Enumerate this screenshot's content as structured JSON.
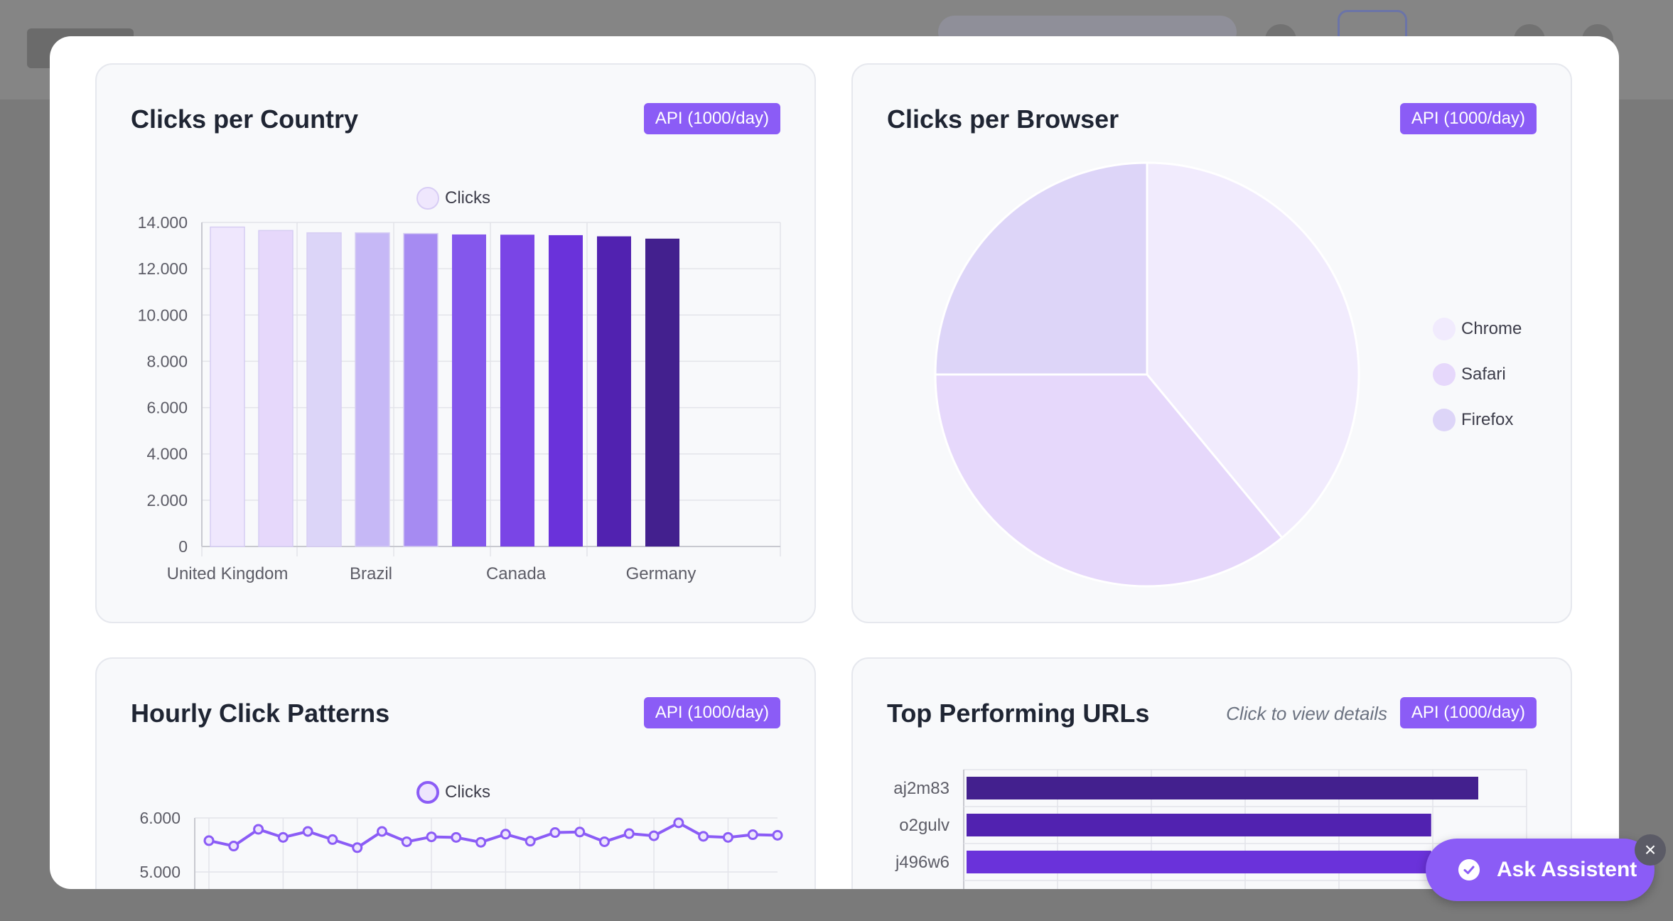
{
  "cards": {
    "country": {
      "title": "Clicks per Country",
      "badge": "API (1000/day)",
      "legend": "Clicks"
    },
    "browser": {
      "title": "Clicks per Browser",
      "badge": "API (1000/day)",
      "legend": [
        "Chrome",
        "Safari",
        "Firefox"
      ]
    },
    "hourly": {
      "title": "Hourly Click Patterns",
      "badge": "API (1000/day)",
      "legend": "Clicks"
    },
    "urls": {
      "title": "Top Performing URLs",
      "hint": "Click to view details",
      "badge": "API (1000/day)"
    }
  },
  "assistant": {
    "label": "Ask Assistent"
  },
  "colors": {
    "accent": "#8b5cf6",
    "bar_palette": [
      "#efe7fd",
      "#e6d8fb",
      "#dcd5f8",
      "#c6b8f6",
      "#a68bf2",
      "#8457ec",
      "#7a45e6",
      "#6a32da",
      "#5122b0",
      "#43208e"
    ]
  },
  "chart_data": [
    {
      "type": "bar",
      "title": "Clicks per Country",
      "legend": "Clicks",
      "categories": [
        "United Kingdom",
        "",
        "Brazil",
        "",
        "",
        "Canada",
        "",
        "",
        "Germany",
        ""
      ],
      "tick_labels": [
        "United Kingdom",
        "Brazil",
        "Canada",
        "Germany"
      ],
      "values": [
        13800,
        13650,
        13550,
        13550,
        13520,
        13480,
        13470,
        13450,
        13400,
        13300
      ],
      "ylim": [
        0,
        14000
      ],
      "yticks": [
        "0",
        "2.000",
        "4.000",
        "6.000",
        "8.000",
        "10.000",
        "12.000",
        "14.000"
      ],
      "grid": true,
      "legend_position": "top"
    },
    {
      "type": "pie",
      "title": "Clicks per Browser",
      "labels": [
        "Chrome",
        "Safari",
        "Firefox"
      ],
      "values": [
        39,
        36,
        25
      ],
      "colors": [
        "#f1ebfd",
        "#e6d8fb",
        "#ddd5f8"
      ],
      "legend_position": "right"
    },
    {
      "type": "line",
      "title": "Hourly Click Patterns",
      "legend": "Clicks",
      "x": [
        0,
        1,
        2,
        3,
        4,
        5,
        6,
        7,
        8,
        9,
        10,
        11,
        12,
        13,
        14,
        15,
        16,
        17,
        18,
        19,
        20,
        21,
        22,
        23
      ],
      "values": [
        5580,
        5480,
        5790,
        5640,
        5750,
        5600,
        5450,
        5750,
        5560,
        5650,
        5640,
        5550,
        5700,
        5570,
        5730,
        5740,
        5560,
        5710,
        5670,
        5910,
        5660,
        5640,
        5690,
        5680
      ],
      "yticks": [
        "5.000",
        "6.000"
      ],
      "grid": true,
      "legend_position": "top"
    },
    {
      "type": "bar",
      "orientation": "horizontal",
      "title": "Top Performing URLs",
      "categories": [
        "aj2m83",
        "o2gulv",
        "j496w6"
      ],
      "values": [
        1000,
        908,
        908
      ],
      "colors": [
        "#43208e",
        "#5122b0",
        "#6a32da"
      ]
    }
  ]
}
